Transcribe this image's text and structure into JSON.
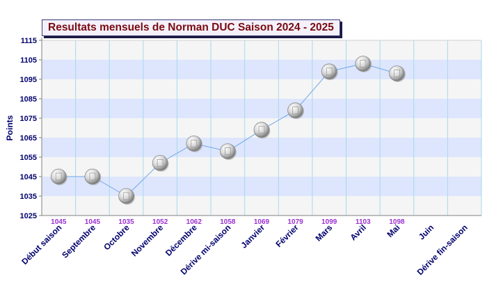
{
  "chart_data": {
    "type": "line",
    "title": "Resultats mensuels de Norman DUC Saison 2024 - 2025",
    "xlabel": "",
    "ylabel": "Points",
    "categories": [
      "Début saison",
      "Septembre",
      "Octobre",
      "Novembre",
      "Décembre",
      "Dérive mi-saison",
      "Janvier",
      "Février",
      "Mars",
      "Avril",
      "Mai",
      "Juin",
      "Dérive fin-saison"
    ],
    "series": [
      {
        "values": [
          1045,
          1045,
          1035,
          1052,
          1062,
          1058,
          1069,
          1079,
          1099,
          1103,
          1098,
          null,
          null
        ]
      }
    ],
    "data_labels": [
      "1045",
      "1045",
      "1035",
      "1052",
      "1062",
      "1058",
      "1069",
      "1079",
      "1099",
      "1103",
      "1098",
      "",
      ""
    ],
    "ylim": [
      1025,
      1115
    ],
    "yticks": [
      1025,
      1035,
      1045,
      1055,
      1065,
      1075,
      1085,
      1095,
      1105,
      1115
    ],
    "grid": true,
    "colors": {
      "line": "#6fa8e8",
      "band_blue": "#dde6fd",
      "band_grey": "#f5f5f5",
      "grid": "#a8d8ec",
      "title_text": "#7a0a10",
      "axis_text": "#00006e",
      "data_label": "#9b30d0"
    }
  }
}
